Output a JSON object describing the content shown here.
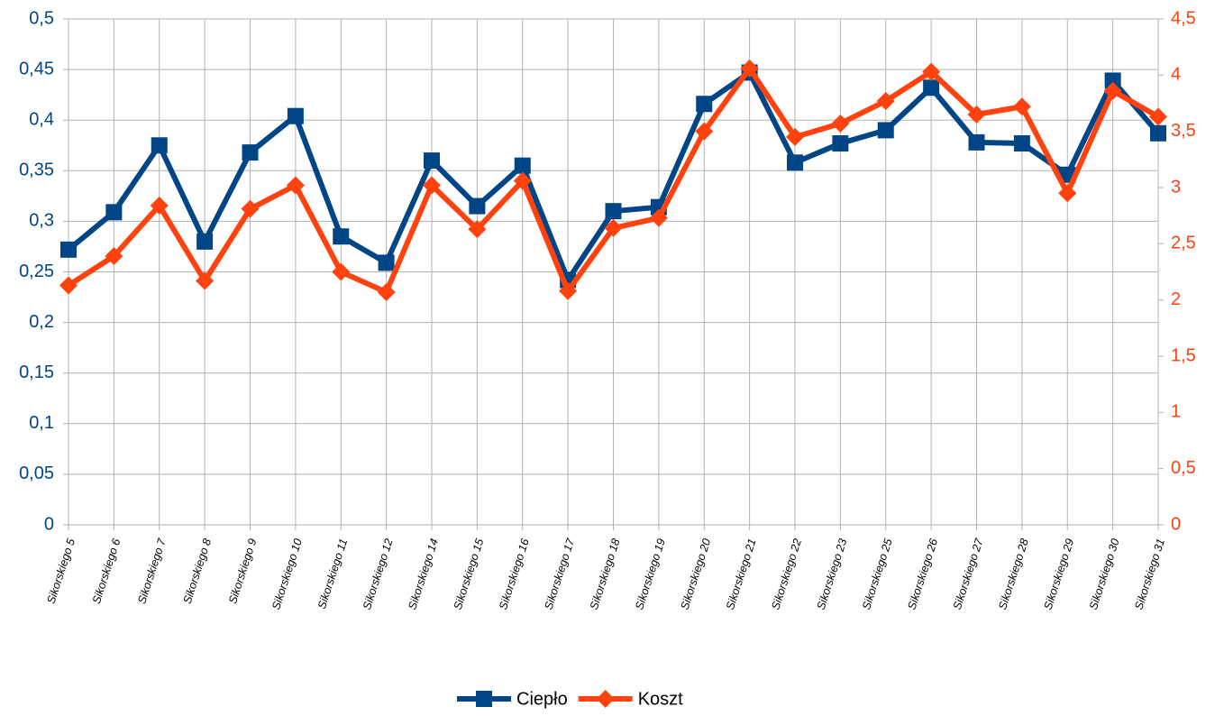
{
  "chart_data": {
    "type": "line",
    "categories": [
      "Sikorskiego 5",
      "Sikorskiego 6",
      "Sikorskiego 7",
      "Sikorskiego 8",
      "Sikorskiego 9",
      "Sikorskiego 10",
      "Sikorskiego 11",
      "Sikorskiego 12",
      "Sikorskiego 14",
      "Sikorskiego 15",
      "Sikorskiego 16",
      "Sikorskiego 17",
      "Sikorskiego 18",
      "Sikorskiego 19",
      "Sikorskiego 20",
      "Sikorskiego 21",
      "Sikorskiego 22",
      "Sikorskiego 23",
      "Sikorskiego 25",
      "Sikorskiego 26",
      "Sikorskiego 27",
      "Sikorskiego 28",
      "Sikorskiego 29",
      "Sikorskiego 30",
      "Sikorskiego 31"
    ],
    "series": [
      {
        "name": "Ciepło",
        "color": "#004586",
        "marker": "square",
        "values": [
          0.272,
          0.309,
          0.375,
          0.28,
          0.368,
          0.404,
          0.285,
          0.259,
          0.36,
          0.315,
          0.355,
          0.242,
          0.31,
          0.314,
          0.416,
          0.447,
          0.358,
          0.377,
          0.39,
          0.432,
          0.378,
          0.377,
          0.346,
          0.439,
          0.387
        ]
      },
      {
        "name": "Koszt",
        "color": "#ff420e",
        "marker": "diamond",
        "axis": "y2",
        "values": [
          2.13,
          2.39,
          2.84,
          2.17,
          2.81,
          3.02,
          2.25,
          2.07,
          3.02,
          2.63,
          3.06,
          2.08,
          2.64,
          2.73,
          3.5,
          4.06,
          3.45,
          3.57,
          3.77,
          4.03,
          3.65,
          3.72,
          2.95,
          3.86,
          3.63
        ]
      }
    ],
    "ylim": [
      0,
      0.5
    ],
    "yticks": [
      0,
      {
        "value": 0.05,
        "label": "0,05"
      },
      {
        "value": 0.1,
        "label": "0,1"
      },
      {
        "value": 0.15,
        "label": "0,15"
      },
      {
        "value": 0.2,
        "label": "0,2"
      },
      {
        "value": 0.25,
        "label": "0,25"
      },
      {
        "value": 0.3,
        "label": "0,3"
      },
      {
        "value": 0.35,
        "label": "0,35"
      },
      {
        "value": 0.4,
        "label": "0,4"
      },
      {
        "value": 0.45,
        "label": "0,45"
      },
      {
        "value": 0.5,
        "label": "0,5"
      }
    ],
    "y2lim": [
      0,
      4.5
    ],
    "y2ticks": [
      0,
      {
        "value": 0.5,
        "label": "0,5"
      },
      1,
      {
        "value": 1.5,
        "label": "1,5"
      },
      2,
      {
        "value": 2.5,
        "label": "2,5"
      },
      3,
      {
        "value": 3.5,
        "label": "3,5"
      },
      4,
      {
        "value": 4.5,
        "label": "4,5"
      }
    ],
    "grid": true,
    "legend": "bottom"
  }
}
